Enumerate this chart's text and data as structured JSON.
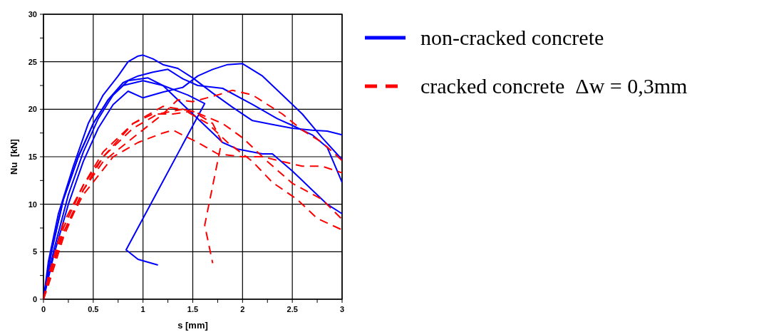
{
  "chart_data": {
    "type": "line",
    "xlabel": "s [mm]",
    "ylabel": "Nu  [kN]",
    "xlim": [
      0,
      3
    ],
    "ylim": [
      0,
      30
    ],
    "xticks": [
      0,
      {
        "value": 0.25,
        "label": null
      },
      0.5,
      {
        "value": 0.75,
        "label": null
      },
      1,
      {
        "value": 1.25,
        "label": null
      },
      1.5,
      {
        "value": 1.75,
        "label": null
      },
      2,
      {
        "value": 2.25,
        "label": null
      },
      2.5,
      {
        "value": 2.75,
        "label": null
      },
      3
    ],
    "yticks": [
      0,
      {
        "value": 2.5,
        "label": null
      },
      5,
      {
        "value": 7.5,
        "label": null
      },
      10,
      {
        "value": 12.5,
        "label": null
      },
      15,
      {
        "value": 17.5,
        "label": null
      },
      20,
      {
        "value": 22.5,
        "label": null
      },
      25,
      {
        "value": 27.5,
        "label": null
      },
      30
    ],
    "grid": true,
    "legend": "right",
    "series": [
      {
        "name": "non-cracked concrete",
        "color": "#0000ff",
        "line_style": "solid",
        "x": [
          0,
          0.05,
          0.15,
          0.3,
          0.45,
          0.6,
          0.75,
          0.85,
          0.95,
          1.0,
          1.1,
          1.2,
          1.35,
          1.5,
          1.7,
          1.9,
          2.1,
          2.3,
          2.5,
          2.7,
          2.85,
          3.0
        ],
        "values": [
          0,
          4,
          9,
          14,
          18.5,
          21.5,
          23.5,
          25,
          25.6,
          25.7,
          25.3,
          24.7,
          24.3,
          23.3,
          21.7,
          20.2,
          18.8,
          18.4,
          18,
          17.8,
          17.7,
          17.3
        ]
      },
      {
        "color": "#0000ff",
        "line_style": "solid",
        "x": [
          0,
          0.08,
          0.2,
          0.35,
          0.5,
          0.65,
          0.8,
          1.0,
          1.2,
          1.45,
          1.62,
          0.83,
          0.95,
          1.15
        ],
        "values": [
          0,
          5,
          10.5,
          15,
          18.5,
          21,
          22.5,
          23,
          22.5,
          21.5,
          20.6,
          5.2,
          4.2,
          3.6
        ]
      },
      {
        "color": "#0000ff",
        "line_style": "solid",
        "x": [
          0,
          0.1,
          0.25,
          0.4,
          0.55,
          0.7,
          0.85,
          1.05,
          1.2,
          1.4,
          1.6,
          1.8,
          1.95,
          2.2,
          2.3,
          2.5,
          2.7,
          2.85,
          3.0
        ],
        "values": [
          0,
          5,
          11,
          15.5,
          19,
          21.5,
          23,
          23.3,
          22.5,
          20.5,
          18.5,
          16.5,
          15.8,
          15.3,
          15.3,
          13.5,
          11.5,
          10,
          9
        ]
      },
      {
        "color": "#0000ff",
        "line_style": "solid",
        "x": [
          0,
          0.1,
          0.25,
          0.4,
          0.55,
          0.7,
          0.85,
          1.0,
          1.2,
          1.4,
          1.55,
          1.7,
          1.85,
          2.0,
          2.2,
          2.4,
          2.6,
          2.8,
          3.0
        ],
        "values": [
          0,
          4.5,
          10,
          14.5,
          18,
          20.5,
          21.9,
          21.2,
          21.8,
          22.3,
          23.5,
          24.2,
          24.7,
          24.8,
          23.5,
          21.5,
          19.5,
          17,
          14.7
        ]
      },
      {
        "color": "#0000ff",
        "line_style": "solid",
        "x": [
          0,
          0.08,
          0.2,
          0.35,
          0.5,
          0.65,
          0.8,
          0.95,
          1.1,
          1.25,
          1.4,
          1.55,
          1.8,
          2.1,
          2.35,
          2.5,
          2.7,
          2.85,
          3.0
        ],
        "values": [
          0,
          5,
          10.5,
          15,
          18.5,
          21,
          22.8,
          23.5,
          23.9,
          24.2,
          23.2,
          22.5,
          22.2,
          20.5,
          19,
          18.3,
          17.3,
          16,
          12.3
        ]
      },
      {
        "name": "cracked concrete  Δw = 0,3mm",
        "color": "#ff0000",
        "line_style": "dashed",
        "x": [
          0,
          0.05,
          0.2,
          0.4,
          0.6,
          0.9,
          1.2,
          1.35,
          1.5,
          1.75,
          1.9,
          2.1,
          2.4,
          2.6,
          2.8,
          3.0
        ],
        "values": [
          0,
          2,
          7,
          11.5,
          14.5,
          17,
          19.5,
          21,
          20.8,
          21.5,
          22,
          21.5,
          19.5,
          17.8,
          16.5,
          14.6
        ]
      },
      {
        "color": "#ff0000",
        "line_style": "dashed",
        "x": [
          0,
          0.05,
          0.2,
          0.4,
          0.7,
          0.95,
          1.2,
          1.3,
          1.55,
          1.75,
          2.0,
          2.2,
          2.4,
          2.6,
          2.8,
          3.0
        ],
        "values": [
          0,
          2,
          7,
          11,
          15,
          16.5,
          17.5,
          17.8,
          16.5,
          15.3,
          15,
          15,
          14.5,
          14,
          14,
          13.3
        ]
      },
      {
        "color": "#ff0000",
        "line_style": "dashed",
        "x": [
          0,
          0.05,
          0.2,
          0.4,
          0.6,
          0.9,
          1.2,
          1.5,
          1.8,
          2.0,
          2.25,
          2.5,
          2.8,
          3.0
        ],
        "values": [
          0,
          2.5,
          8,
          12,
          15,
          18.5,
          20.3,
          19.8,
          18.5,
          17,
          14.5,
          12.2,
          10.5,
          8.4
        ]
      },
      {
        "color": "#ff0000",
        "line_style": "dashed",
        "x": [
          0,
          0.05,
          0.2,
          0.4,
          0.6,
          0.9,
          1.15,
          1.4,
          1.65,
          1.85,
          2.1,
          2.3,
          2.55,
          2.75,
          3.0
        ],
        "values": [
          0,
          1.5,
          6.5,
          11.5,
          15,
          18,
          19.5,
          20,
          18.5,
          16.5,
          14.5,
          12.3,
          10.5,
          8.5,
          7.3
        ]
      },
      {
        "color": "#ff0000",
        "line_style": "dashed",
        "x": [
          0,
          0.05,
          0.2,
          0.4,
          0.6,
          0.9,
          1.1,
          1.3,
          1.5,
          1.7,
          1.79,
          1.62,
          1.7
        ],
        "values": [
          0,
          2,
          7.5,
          12,
          15.5,
          18.5,
          19.5,
          19.5,
          19.8,
          18.5,
          16.6,
          7.8,
          3.8
        ]
      }
    ]
  }
}
